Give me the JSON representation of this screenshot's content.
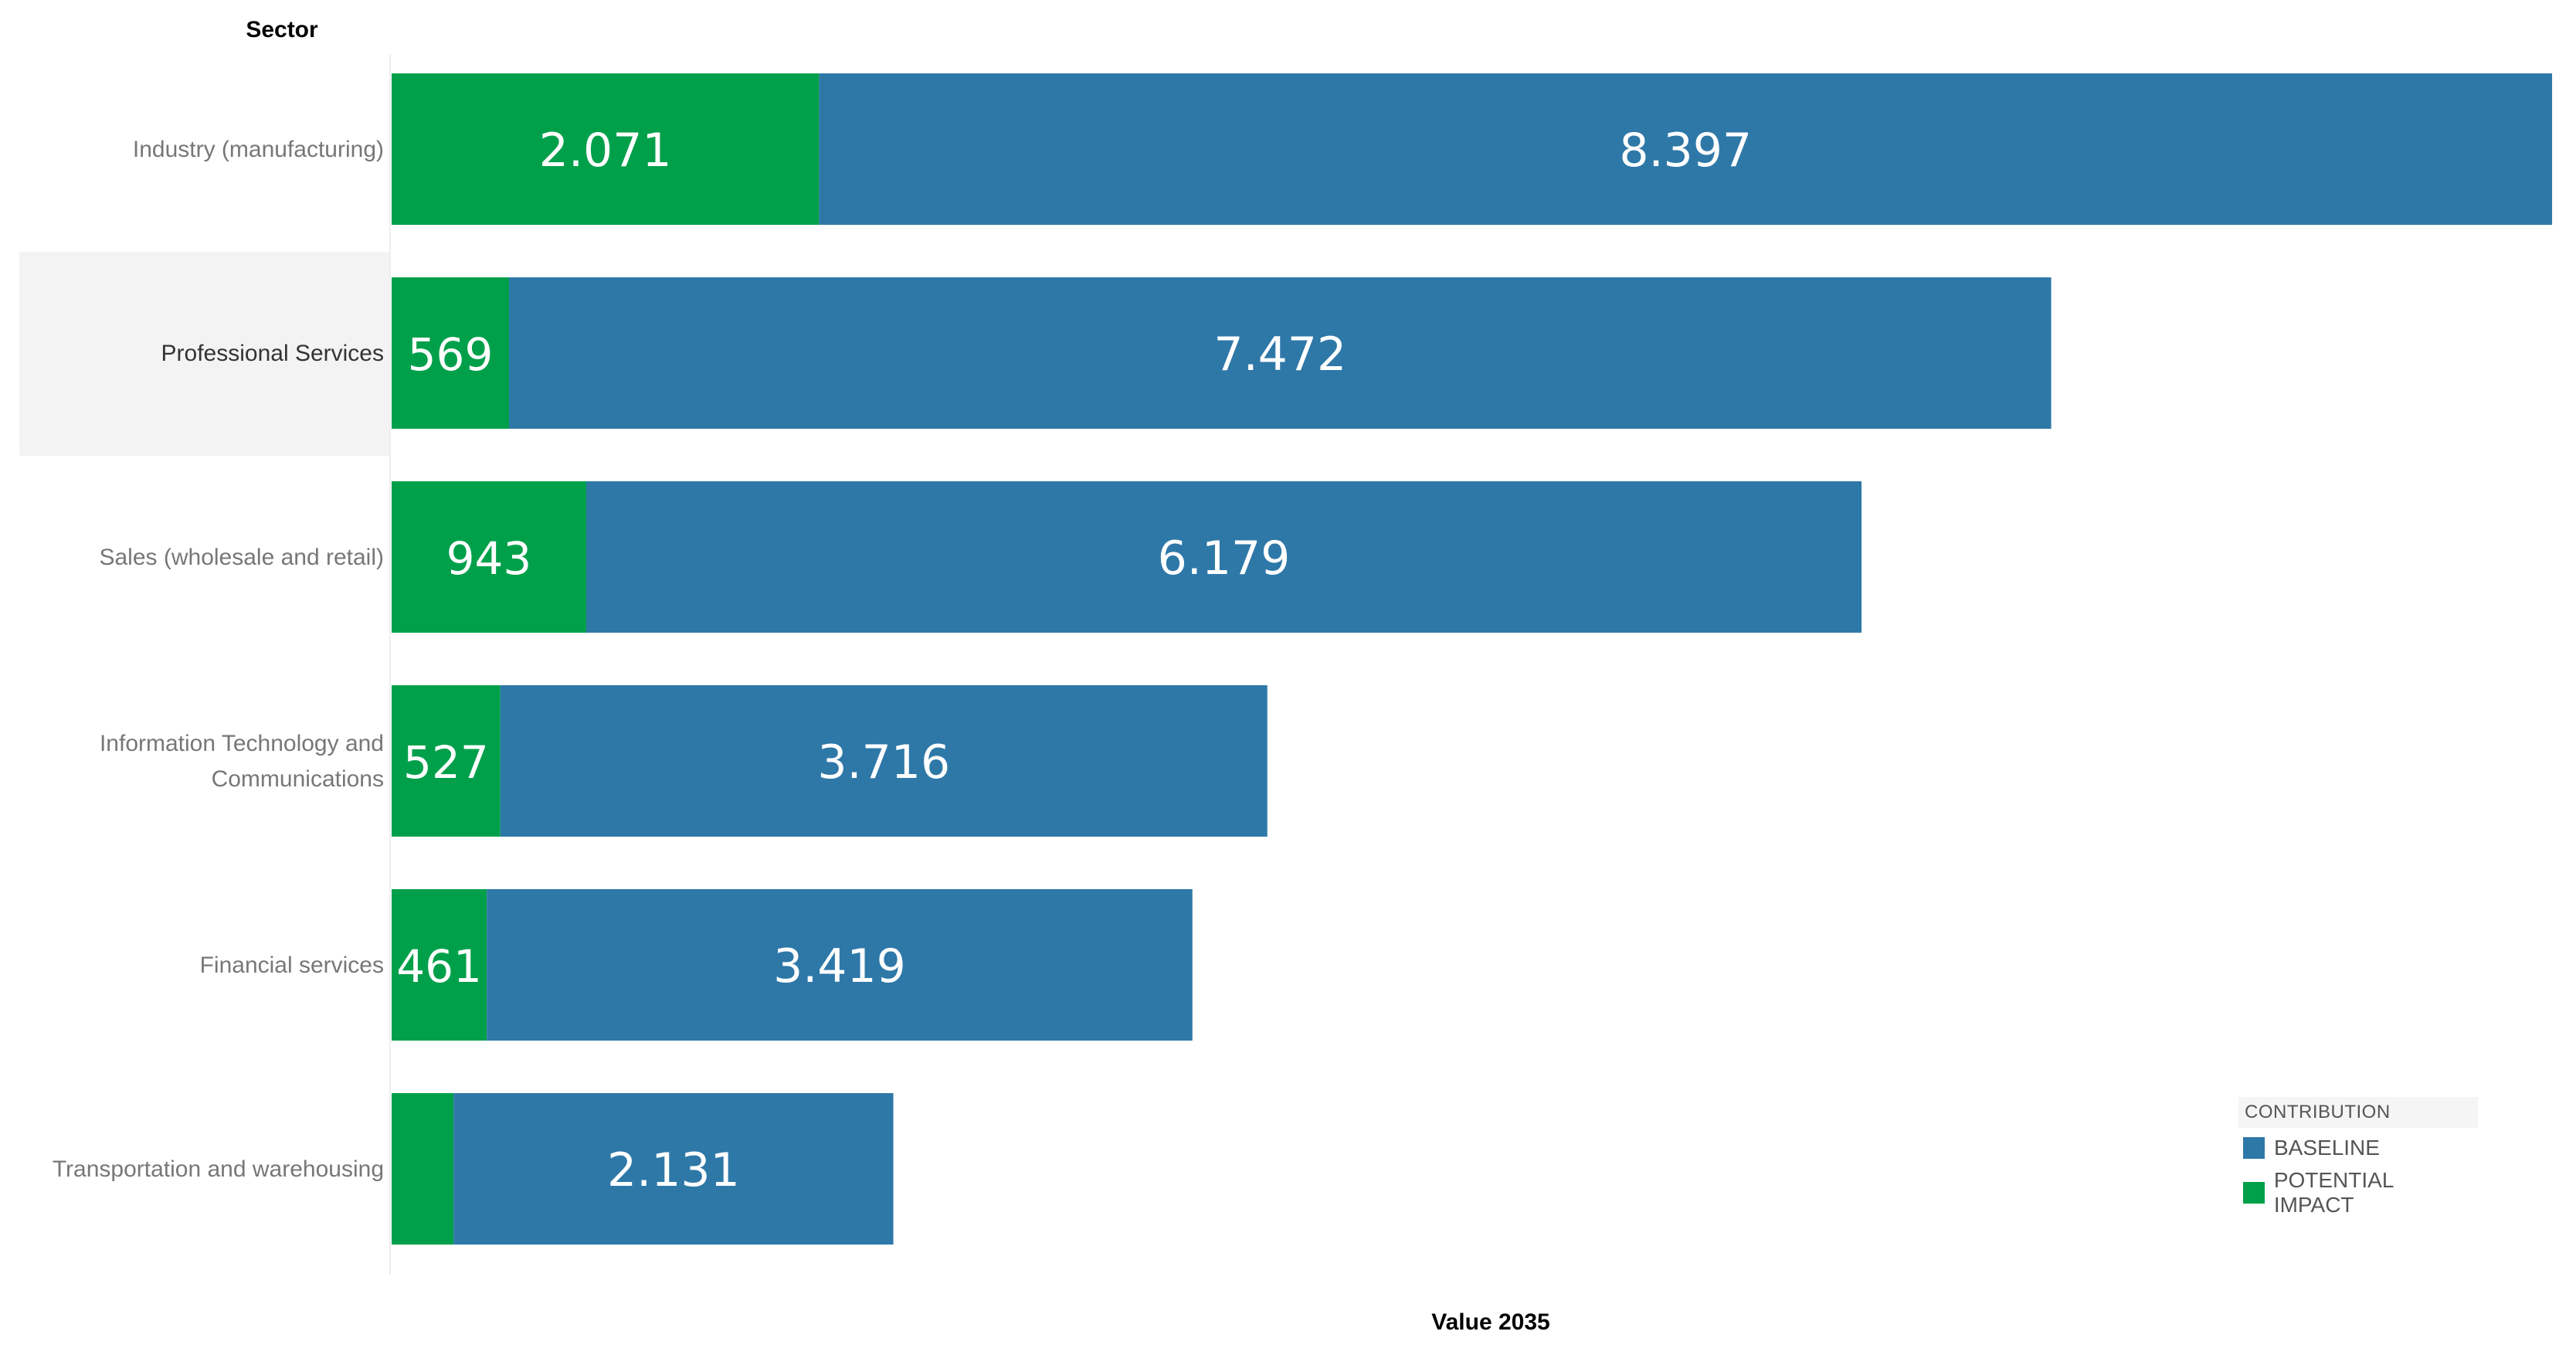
{
  "chart_data": {
    "type": "bar",
    "orientation": "horizontal",
    "stacked": true,
    "header": "Sector",
    "xlabel": "Value 2035",
    "categories": [
      "Industry (manufacturing)",
      "Professional Services",
      "Sales (wholesale and retail)",
      "Information Technology and Communications",
      "Financial services",
      "Transportation and warehousing"
    ],
    "series": [
      {
        "name": "POTENTIAL IMPACT",
        "color": "#00a04a",
        "values": [
          2071,
          569,
          943,
          527,
          461,
          300
        ],
        "labels": [
          "2.071",
          "569",
          "943",
          "527",
          "461",
          ""
        ]
      },
      {
        "name": "BASELINE",
        "color": "#2e78a8",
        "values": [
          8397,
          7472,
          6179,
          3716,
          3419,
          2131
        ],
        "labels": [
          "8.397",
          "7.472",
          "6.179",
          "3.716",
          "3.419",
          "2.131"
        ]
      }
    ],
    "highlighted_category": "Professional Services",
    "grid": false,
    "legend_position": "bottom-right"
  },
  "legend": {
    "title": "CONTRIBUTION",
    "items": [
      {
        "label": "BASELINE",
        "color": "#2e78a8"
      },
      {
        "label": "POTENTIAL IMPACT",
        "color": "#00a04a"
      }
    ]
  }
}
